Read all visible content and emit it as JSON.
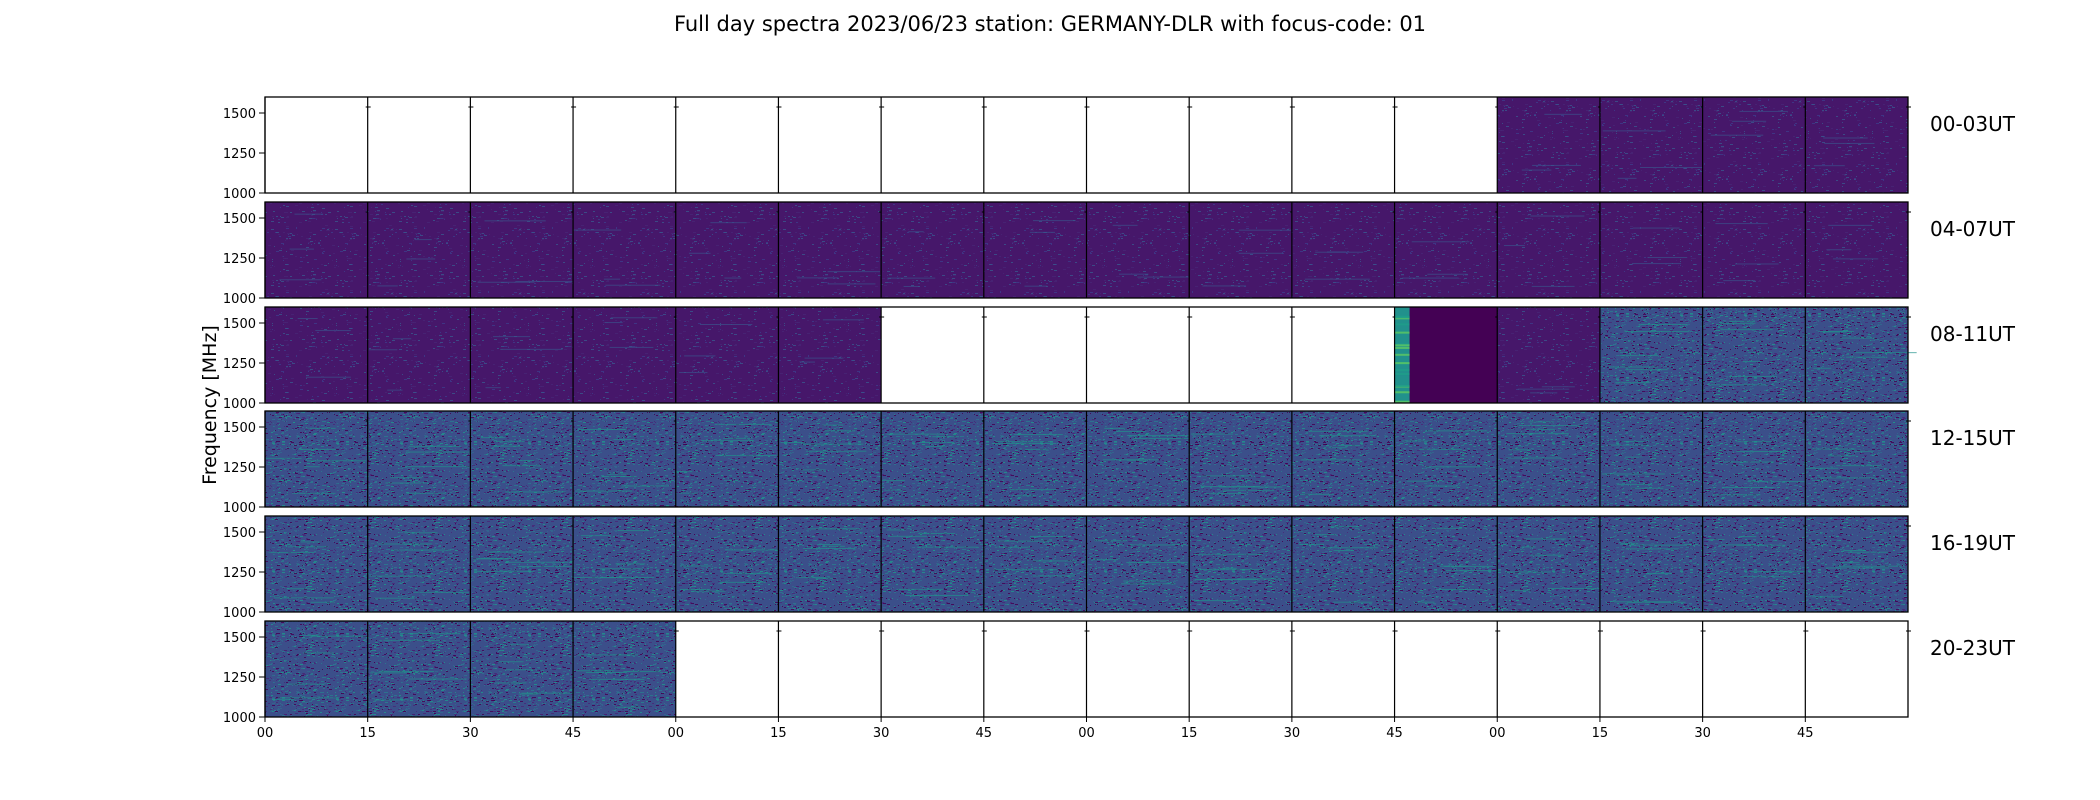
{
  "chart_data": {
    "type": "heatmap",
    "title": "Full day spectra 2023/06/23 station: GERMANY-DLR with focus-code: 01",
    "ylabel": "Frequency [MHz]",
    "ylim": [
      1000,
      1600
    ],
    "yticks": [
      "1000",
      "1250",
      "1500"
    ],
    "xticks": [
      "00",
      "15",
      "30",
      "45",
      "00",
      "15",
      "30",
      "45",
      "00",
      "15",
      "30",
      "45",
      "00",
      "15",
      "30",
      "45"
    ],
    "cells_per_row": 16,
    "colormap": [
      "#440154",
      "#3b528b",
      "#21918c",
      "#5ec962",
      "#fde725"
    ],
    "rows": [
      {
        "label": "00-03UT",
        "cells": [
          "empty",
          "empty",
          "empty",
          "empty",
          "empty",
          "empty",
          "empty",
          "empty",
          "empty",
          "empty",
          "empty",
          "empty",
          "quiet",
          "quiet",
          "quiet",
          "quiet"
        ]
      },
      {
        "label": "04-07UT",
        "cells": [
          "quiet",
          "quiet",
          "quiet",
          "quiet",
          "quiet",
          "quiet",
          "quiet",
          "quiet",
          "quiet",
          "quiet",
          "quiet",
          "quiet",
          "quiet",
          "quiet",
          "quiet",
          "quiet"
        ]
      },
      {
        "label": "08-11UT",
        "cells": [
          "quiet",
          "quiet",
          "quiet",
          "quiet",
          "quiet",
          "quiet",
          "empty",
          "empty",
          "empty",
          "empty",
          "empty",
          "burst",
          "quiet",
          "noisy",
          "noisy",
          "noisy"
        ]
      },
      {
        "label": "12-15UT",
        "cells": [
          "noisy",
          "noisy",
          "noisy",
          "noisy",
          "noisy",
          "noisy",
          "noisy",
          "noisy",
          "noisy",
          "noisy",
          "noisy",
          "noisy",
          "noisy",
          "noisy",
          "noisy",
          "noisy"
        ]
      },
      {
        "label": "16-19UT",
        "cells": [
          "noisy",
          "noisy",
          "noisy",
          "noisy",
          "noisy",
          "noisy",
          "noisy",
          "noisy",
          "noisy",
          "noisy",
          "noisy",
          "noisy",
          "noisy",
          "noisy",
          "noisy",
          "noisy"
        ]
      },
      {
        "label": "20-23UT",
        "cells": [
          "noisy",
          "noisy",
          "noisy",
          "noisy",
          "empty",
          "empty",
          "empty",
          "empty",
          "empty",
          "empty",
          "empty",
          "empty",
          "empty",
          "empty",
          "empty",
          "empty"
        ]
      }
    ]
  }
}
